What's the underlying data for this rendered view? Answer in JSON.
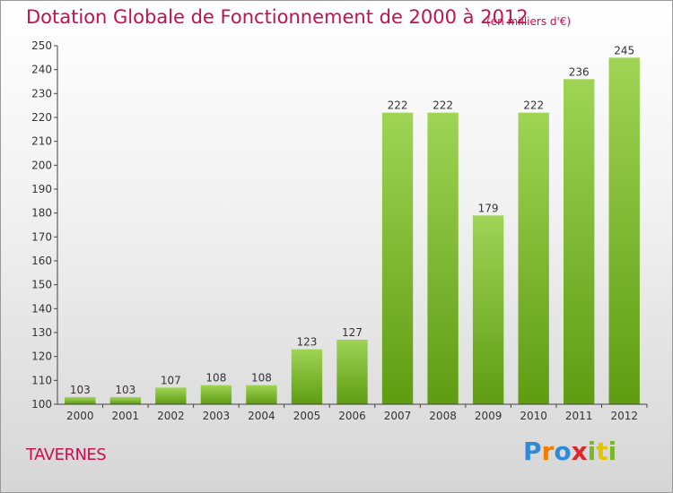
{
  "title": "Dotation Globale de Fonctionnement de 2000 à 2012",
  "unit_note": "(en milliers d'€)",
  "commune": "TAVERNES",
  "logo": {
    "text": "Proxiti",
    "letters": [
      "P",
      "r",
      "o",
      "x",
      "i",
      "t",
      "i"
    ]
  },
  "colors": {
    "title": "#c4114f",
    "bar_top": "#9fd455",
    "bar_bottom": "#5f9c12"
  },
  "chart_data": {
    "type": "bar",
    "title": "Dotation Globale de Fonctionnement de 2000 à 2012",
    "categories": [
      "2000",
      "2001",
      "2002",
      "2003",
      "2004",
      "2005",
      "2006",
      "2007",
      "2008",
      "2009",
      "2010",
      "2011",
      "2012"
    ],
    "values": [
      103,
      103,
      107,
      108,
      108,
      123,
      127,
      222,
      222,
      179,
      222,
      236,
      245
    ],
    "ylim": [
      100,
      250
    ],
    "ytick_step": 10,
    "grid": false,
    "xlabel": "",
    "ylabel": ""
  }
}
